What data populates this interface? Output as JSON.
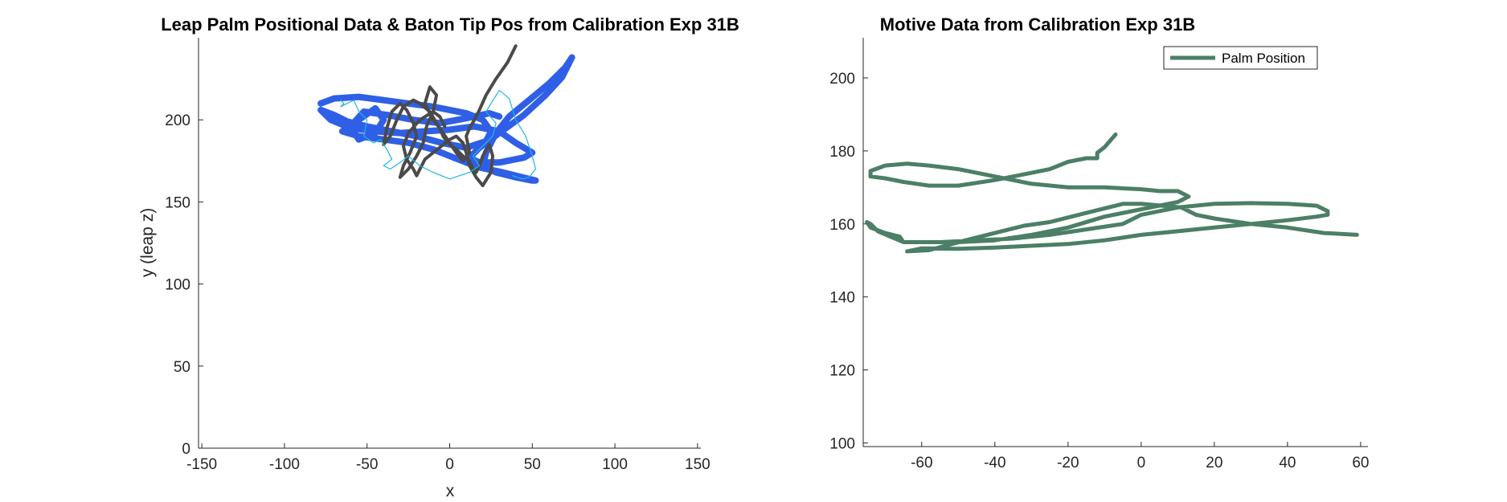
{
  "chart_data": [
    {
      "type": "line",
      "title": "Leap Palm Positional Data & Baton Tip Pos from Calibration Exp 31B",
      "xlabel": "x",
      "ylabel": "y (leap z)",
      "xlim": [
        -152,
        152
      ],
      "ylim": [
        0,
        250
      ],
      "xticks": [
        -150,
        -100,
        -50,
        0,
        50,
        100,
        150
      ],
      "yticks": [
        0,
        50,
        100,
        150,
        200
      ],
      "grid": false,
      "colors": {
        "palm": "#2f5fe6",
        "baton": "#4a4a4a",
        "detail": "#1fb6e8"
      },
      "series": [
        {
          "color": "#2f5fe6",
          "x": [
            -78,
            -70,
            -55,
            -40,
            -25,
            -10,
            0,
            10,
            20,
            25,
            22,
            10,
            -5,
            -20,
            -35,
            -50,
            -62,
            -70,
            -78,
            -72,
            -60,
            -45,
            -30,
            -15,
            0,
            15,
            30,
            40,
            50,
            45,
            30,
            18,
            12,
            18,
            30,
            45,
            58,
            68,
            74,
            70,
            60,
            48,
            36,
            28,
            22,
            20,
            28,
            40,
            50,
            52,
            44,
            32,
            18,
            5,
            -10,
            -25,
            -40,
            -55,
            -65,
            -55,
            -45,
            -40,
            -45,
            -55,
            -60,
            -52,
            -38,
            -22,
            -6,
            10,
            24,
            30
          ],
          "y": [
            210,
            213,
            214,
            212,
            210,
            208,
            206,
            204,
            200,
            193,
            187,
            183,
            186,
            190,
            193,
            196,
            199,
            203,
            206,
            200,
            195,
            193,
            192,
            193,
            194,
            196,
            193,
            186,
            180,
            177,
            174,
            174,
            177,
            183,
            192,
            203,
            215,
            226,
            238,
            232,
            222,
            212,
            202,
            192,
            180,
            172,
            168,
            165,
            163,
            163,
            165,
            168,
            171,
            176,
            182,
            186,
            188,
            190,
            193,
            200,
            207,
            200,
            192,
            188,
            196,
            205,
            203,
            200,
            198,
            201,
            204,
            202
          ]
        },
        {
          "color": "#4a4a4a",
          "x": [
            40,
            35,
            28,
            22,
            18,
            15,
            12,
            10,
            12,
            8,
            4,
            0,
            -4,
            -8,
            -12,
            -18,
            -22,
            -28,
            -32,
            -36,
            -40,
            -38,
            -35,
            -30,
            -26,
            -22,
            -20,
            -24,
            -28,
            -30,
            -25,
            -20,
            -16,
            -14,
            -10,
            -8,
            -12,
            -15,
            -10,
            -6,
            -4,
            0,
            4,
            8,
            12,
            14,
            16,
            18,
            20,
            24,
            26,
            25,
            20,
            16,
            12,
            10,
            8,
            4,
            0,
            -5,
            -10,
            -15,
            -18,
            -20,
            -22,
            -26,
            -28,
            -25,
            -18,
            -10,
            -6,
            -3
          ],
          "y": [
            245,
            235,
            225,
            215,
            206,
            200,
            195,
            190,
            180,
            175,
            180,
            186,
            192,
            198,
            205,
            210,
            212,
            208,
            200,
            190,
            185,
            195,
            205,
            210,
            206,
            198,
            190,
            180,
            172,
            165,
            170,
            178,
            186,
            196,
            205,
            215,
            220,
            210,
            200,
            195,
            190,
            185,
            182,
            178,
            175,
            170,
            168,
            172,
            178,
            185,
            178,
            168,
            160,
            165,
            172,
            180,
            186,
            190,
            188,
            184,
            180,
            176,
            170,
            166,
            170,
            176,
            184,
            192,
            200,
            205,
            202,
            196
          ]
        },
        {
          "color": "#1fb6e8",
          "x": [
            -66,
            -64,
            -66,
            -62,
            -58,
            -55,
            -50,
            -52,
            -46,
            -42,
            -38,
            -35,
            -40,
            -36,
            -30,
            -25,
            -18,
            -10,
            -5,
            0,
            6,
            12,
            18,
            14,
            20,
            26,
            28,
            22,
            25,
            30,
            36,
            40,
            46,
            50,
            52,
            48,
            44,
            38
          ],
          "y": [
            212,
            210,
            208,
            210,
            212,
            205,
            200,
            190,
            186,
            188,
            182,
            176,
            172,
            170,
            174,
            178,
            172,
            168,
            166,
            164,
            166,
            168,
            172,
            178,
            184,
            190,
            198,
            205,
            210,
            218,
            213,
            200,
            190,
            178,
            170,
            165,
            164,
            166
          ]
        }
      ]
    },
    {
      "type": "line",
      "title": "Motive Data from Calibration Exp 31B",
      "xlim": [
        -76,
        62
      ],
      "ylim": [
        99,
        211
      ],
      "xticks": [
        -60,
        -40,
        -20,
        0,
        20,
        40,
        60
      ],
      "yticks": [
        100,
        120,
        140,
        160,
        180,
        200
      ],
      "grid": false,
      "legend_position": "top-right",
      "series": [
        {
          "name": "Palm Position",
          "color": "#4b7f66",
          "x": [
            -7,
            -10,
            -12,
            -12,
            -15,
            -20,
            -25,
            -30,
            -40,
            -50,
            -58,
            -65,
            -70,
            -74,
            -74,
            -70,
            -64,
            -58,
            -50,
            -40,
            -30,
            -20,
            -10,
            0,
            5,
            10,
            13,
            10,
            0,
            -10,
            -20,
            -30,
            -40,
            -50,
            -65,
            -66,
            -70,
            -74,
            -75,
            -74,
            -72,
            -65,
            -55,
            -45,
            -35,
            -25,
            -15,
            -5,
            0,
            10,
            20,
            30,
            40,
            48,
            51,
            51,
            48,
            40,
            30,
            20,
            10,
            0,
            -10,
            -20,
            -30,
            -40,
            -50,
            -60,
            -64,
            -58,
            -48,
            -40,
            -32,
            -25,
            -15,
            -5,
            0,
            11,
            15,
            20,
            30,
            40,
            50,
            59
          ],
          "y": [
            184.5,
            181,
            179.5,
            178,
            178,
            177,
            175,
            174,
            172,
            170.5,
            170.5,
            171.5,
            172.5,
            173,
            174.5,
            176,
            176.5,
            176,
            175,
            173,
            171,
            170,
            170,
            169.5,
            169,
            169,
            167.5,
            166,
            164,
            162,
            159,
            157,
            155.5,
            155,
            155,
            156.5,
            157.5,
            159,
            160.5,
            160,
            158,
            155,
            155,
            155.5,
            156,
            157,
            158.5,
            160,
            162.5,
            164.5,
            165.5,
            165.7,
            165.5,
            165,
            163.5,
            162.5,
            162,
            161,
            160,
            159,
            158,
            157,
            155.5,
            154.5,
            154,
            153.5,
            153.2,
            153.3,
            152.5,
            152.8,
            155.5,
            157.5,
            159.5,
            160.5,
            163,
            165.5,
            165.5,
            164.5,
            162.5,
            161.5,
            160,
            159,
            157.5,
            157
          ]
        }
      ]
    }
  ]
}
